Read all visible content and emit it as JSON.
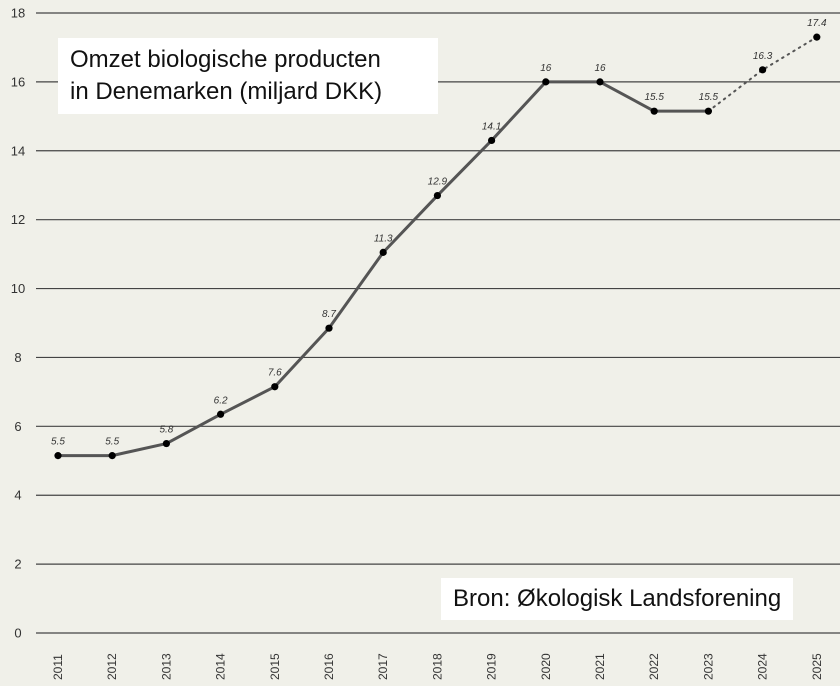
{
  "chart_data": {
    "type": "line",
    "title_line1": "Omzet biologische producten",
    "title_line2": "in Denemarken (miljard DKK)",
    "source": "Bron: Økologisk Landsforening",
    "categories": [
      "2011",
      "2012",
      "2013",
      "2014",
      "2015",
      "2016",
      "2017",
      "2018",
      "2019",
      "2020",
      "2021",
      "2022",
      "2023",
      "2024",
      "2025"
    ],
    "values": [
      5.5,
      5.5,
      5.8,
      6.2,
      7.6,
      8.7,
      11.3,
      12.9,
      14.1,
      16,
      16,
      15.5,
      15.5,
      16.3,
      17.4
    ],
    "plotted_values": [
      5.15,
      5.15,
      5.5,
      6.35,
      7.15,
      8.85,
      11.05,
      12.7,
      14.3,
      16.0,
      16.0,
      15.15,
      15.15,
      16.35,
      17.3
    ],
    "forecast_from_index": 12,
    "ylim": [
      0,
      18
    ],
    "yticks": [
      0,
      2,
      4,
      6,
      8,
      10,
      12,
      14,
      16,
      18
    ],
    "grid": true,
    "line_color": "#555555",
    "marker_color": "#000000",
    "grid_color": "#444444"
  }
}
